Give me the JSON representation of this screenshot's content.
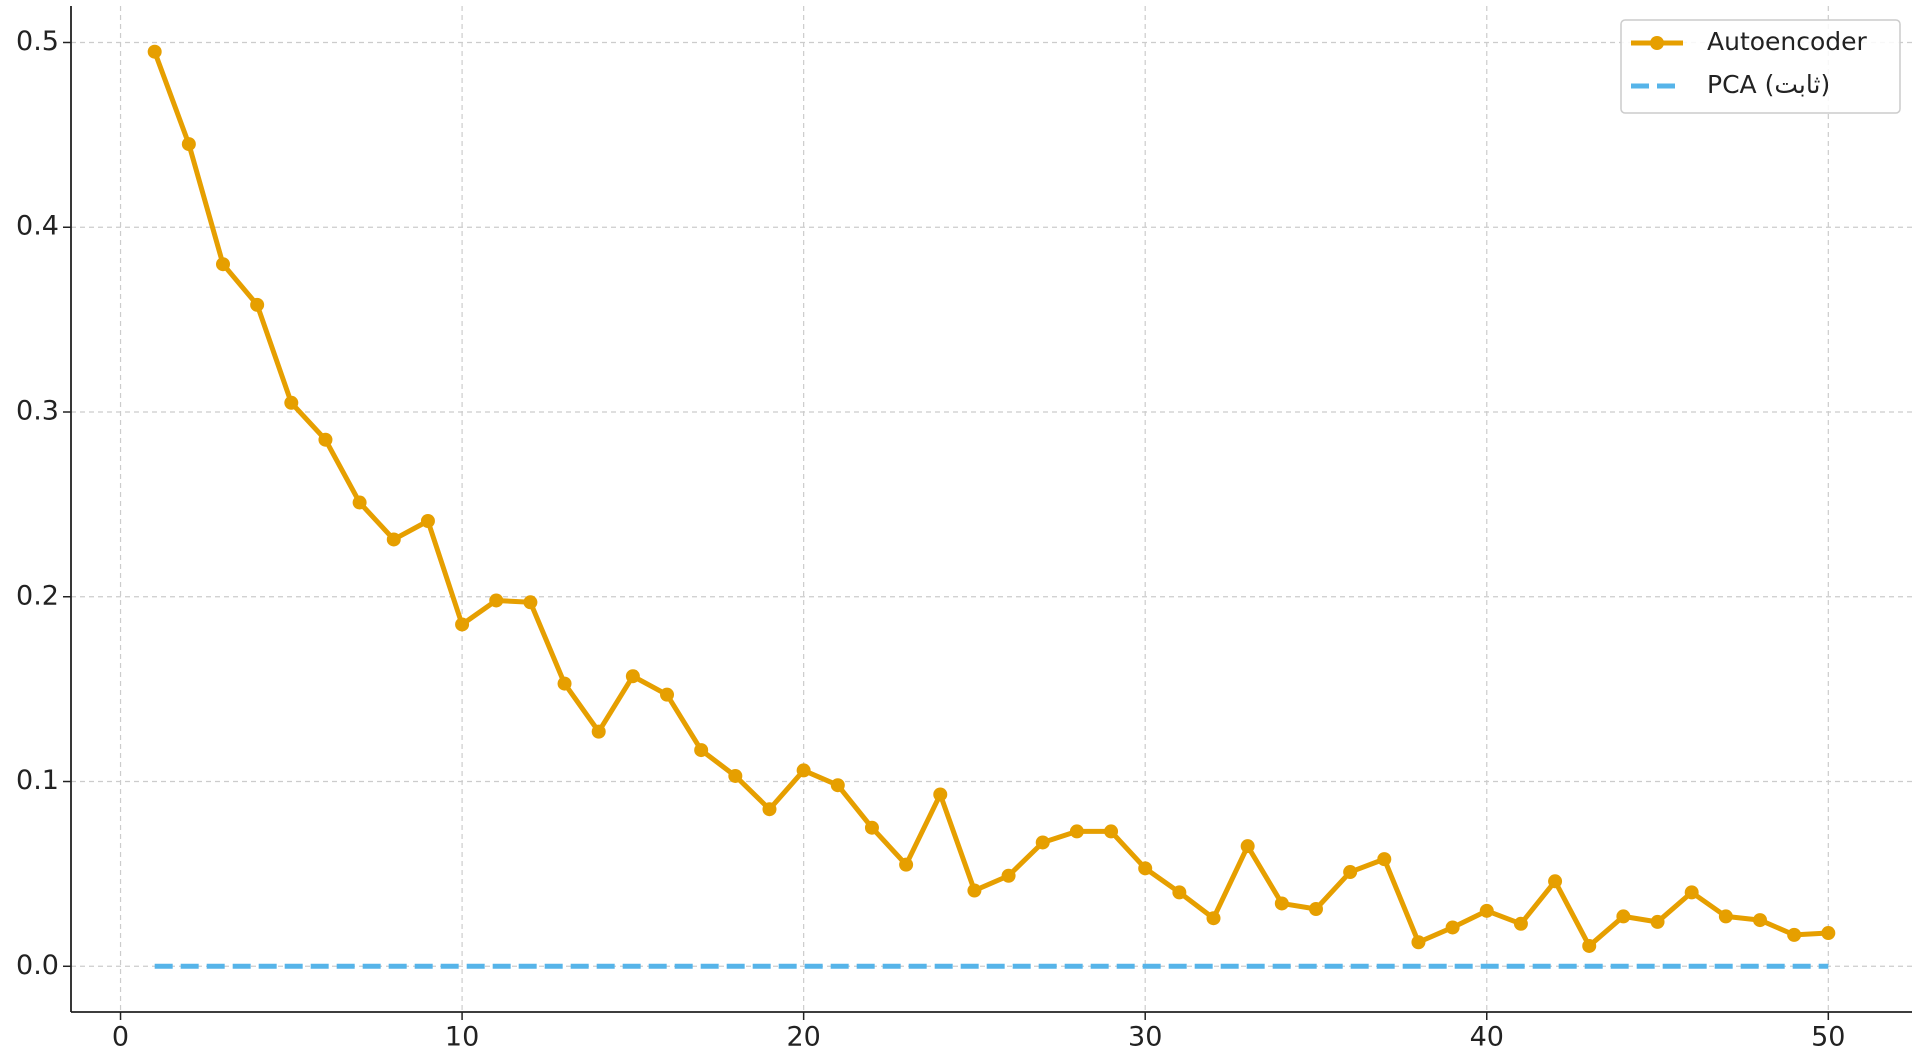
{
  "chart_data": {
    "type": "line",
    "x": [
      1,
      2,
      3,
      4,
      5,
      6,
      7,
      8,
      9,
      10,
      11,
      12,
      13,
      14,
      15,
      16,
      17,
      18,
      19,
      20,
      21,
      22,
      23,
      24,
      25,
      26,
      27,
      28,
      29,
      30,
      31,
      32,
      33,
      34,
      35,
      36,
      37,
      38,
      39,
      40,
      41,
      42,
      43,
      44,
      45,
      46,
      47,
      48,
      49,
      50
    ],
    "series": [
      {
        "name": "Autoencoder",
        "color": "#E69F00",
        "marker": true,
        "dash": false,
        "values": [
          0.495,
          0.445,
          0.38,
          0.358,
          0.305,
          0.285,
          0.251,
          0.231,
          0.241,
          0.185,
          0.198,
          0.197,
          0.153,
          0.127,
          0.157,
          0.147,
          0.117,
          0.103,
          0.085,
          0.106,
          0.098,
          0.075,
          0.055,
          0.093,
          0.041,
          0.049,
          0.067,
          0.073,
          0.073,
          0.053,
          0.04,
          0.026,
          0.065,
          0.034,
          0.031,
          0.051,
          0.058,
          0.013,
          0.021,
          0.03,
          0.023,
          0.046,
          0.011,
          0.027,
          0.024,
          0.04,
          0.027,
          0.025,
          0.017,
          0.018
        ]
      },
      {
        "name": "PCA (ثابت)",
        "color": "#56B4E9",
        "marker": false,
        "dash": true,
        "values": [
          0,
          0,
          0,
          0,
          0,
          0,
          0,
          0,
          0,
          0,
          0,
          0,
          0,
          0,
          0,
          0,
          0,
          0,
          0,
          0,
          0,
          0,
          0,
          0,
          0,
          0,
          0,
          0,
          0,
          0,
          0,
          0,
          0,
          0,
          0,
          0,
          0,
          0,
          0,
          0,
          0,
          0,
          0,
          0,
          0,
          0,
          0,
          0,
          0,
          0
        ]
      }
    ],
    "xlim": [
      -1.45,
      52.45
    ],
    "xticks": [
      0,
      10,
      20,
      30,
      40,
      50
    ],
    "ylim": [
      -0.02475,
      0.51975
    ],
    "yticks": [
      {
        "value": 0,
        "label": "0.0"
      },
      0.1,
      0.2,
      0.3,
      0.4,
      0.5
    ],
    "grid": true,
    "legend": "upper right"
  }
}
